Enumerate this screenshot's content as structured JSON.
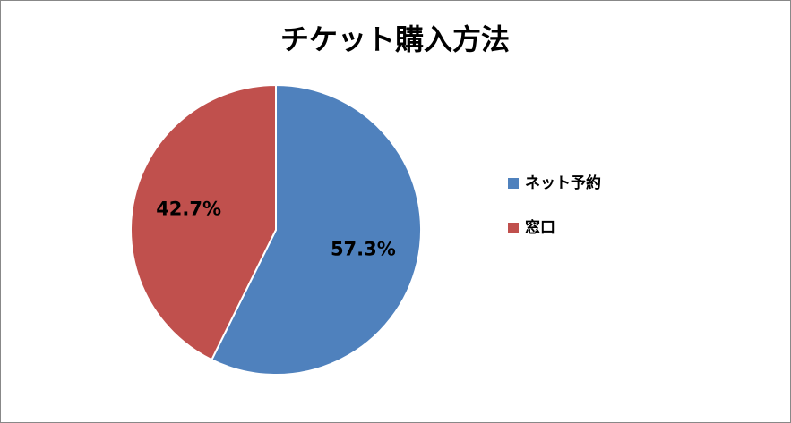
{
  "chart_data": {
    "type": "pie",
    "title": "チケット購入方法",
    "categories": [
      "ネット予約",
      "窓口"
    ],
    "values": [
      57.3,
      42.7
    ],
    "value_labels": [
      "57.3%",
      "42.7%"
    ],
    "colors": [
      "#4f81bd",
      "#c0504d"
    ],
    "legend": "right"
  }
}
